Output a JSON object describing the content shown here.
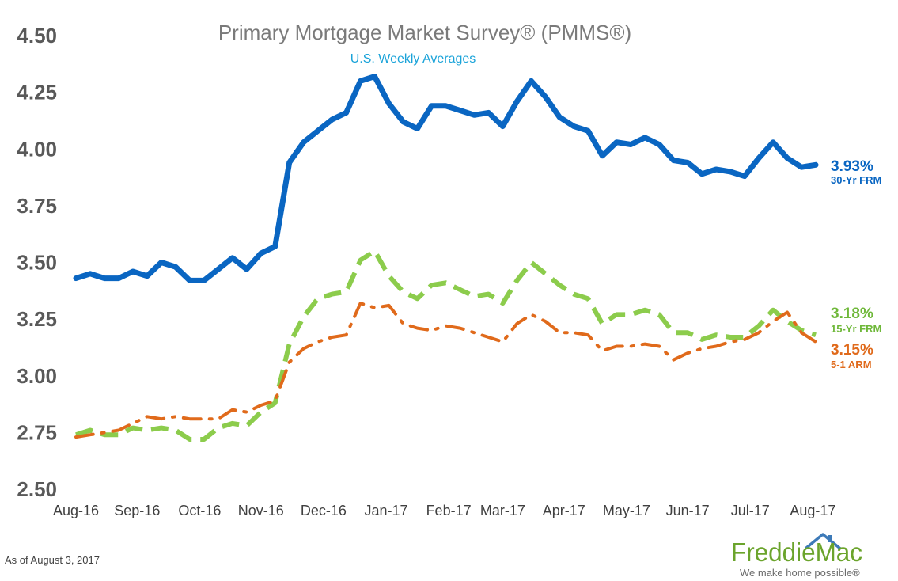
{
  "chart_data": {
    "type": "line",
    "title": "Primary Mortgage Market Survey® (PMMS®)",
    "subtitle": "U.S. Weekly Averages",
    "ylim": [
      2.5,
      4.5
    ],
    "yticks": [
      "4.50",
      "4.25",
      "4.00",
      "3.75",
      "3.50",
      "3.25",
      "3.00",
      "2.75",
      "2.50"
    ],
    "ytick_values": [
      4.5,
      4.25,
      4.0,
      3.75,
      3.5,
      3.25,
      3.0,
      2.75,
      2.5
    ],
    "grid": false,
    "x_weeks": [
      "2016-08-04",
      "2016-08-11",
      "2016-08-18",
      "2016-08-25",
      "2016-09-01",
      "2016-09-08",
      "2016-09-15",
      "2016-09-22",
      "2016-09-29",
      "2016-10-06",
      "2016-10-13",
      "2016-10-20",
      "2016-10-27",
      "2016-11-03",
      "2016-11-10",
      "2016-11-17",
      "2016-11-23",
      "2016-12-01",
      "2016-12-08",
      "2016-12-15",
      "2016-12-22",
      "2016-12-29",
      "2017-01-05",
      "2017-01-12",
      "2017-01-19",
      "2017-01-26",
      "2017-02-02",
      "2017-02-09",
      "2017-02-16",
      "2017-02-23",
      "2017-03-02",
      "2017-03-09",
      "2017-03-16",
      "2017-03-23",
      "2017-03-30",
      "2017-04-06",
      "2017-04-13",
      "2017-04-20",
      "2017-04-27",
      "2017-05-04",
      "2017-05-11",
      "2017-05-18",
      "2017-05-25",
      "2017-06-01",
      "2017-06-08",
      "2017-06-15",
      "2017-06-22",
      "2017-06-29",
      "2017-07-06",
      "2017-07-13",
      "2017-07-20",
      "2017-07-27",
      "2017-08-03"
    ],
    "x_labels": [
      {
        "label": "Aug-16",
        "week": 0
      },
      {
        "label": "Sep-16",
        "week": 4.3
      },
      {
        "label": "Oct-16",
        "week": 8.7
      },
      {
        "label": "Nov-16",
        "week": 13
      },
      {
        "label": "Dec-16",
        "week": 17.4
      },
      {
        "label": "Jan-17",
        "week": 21.8
      },
      {
        "label": "Feb-17",
        "week": 26.2
      },
      {
        "label": "Mar-17",
        "week": 30
      },
      {
        "label": "Apr-17",
        "week": 34.3
      },
      {
        "label": "May-17",
        "week": 38.7
      },
      {
        "label": "Jun-17",
        "week": 43
      },
      {
        "label": "Jul-17",
        "week": 47.4
      },
      {
        "label": "Aug-17",
        "week": 51.8
      }
    ],
    "series": [
      {
        "name": "30-Yr FRM",
        "color": "#0a66c2",
        "style": "solid",
        "end_value": "3.93%",
        "values": [
          3.43,
          3.45,
          3.43,
          3.43,
          3.46,
          3.44,
          3.5,
          3.48,
          3.42,
          3.42,
          3.47,
          3.52,
          3.47,
          3.54,
          3.57,
          3.94,
          4.03,
          4.08,
          4.13,
          4.16,
          4.3,
          4.32,
          4.2,
          4.12,
          4.09,
          4.19,
          4.19,
          4.17,
          4.15,
          4.16,
          4.1,
          4.21,
          4.3,
          4.23,
          4.14,
          4.1,
          4.08,
          3.97,
          4.03,
          4.02,
          4.05,
          4.02,
          3.95,
          3.94,
          3.89,
          3.91,
          3.9,
          3.88,
          3.96,
          4.03,
          3.96,
          3.92,
          3.93
        ]
      },
      {
        "name": "15-Yr FRM",
        "color": "#8ccc4c",
        "style": "dashed",
        "end_value": "3.18%",
        "values": [
          2.74,
          2.76,
          2.74,
          2.74,
          2.77,
          2.76,
          2.77,
          2.76,
          2.72,
          2.72,
          2.77,
          2.79,
          2.78,
          2.84,
          2.88,
          3.14,
          3.26,
          3.34,
          3.36,
          3.37,
          3.51,
          3.55,
          3.44,
          3.37,
          3.34,
          3.4,
          3.41,
          3.38,
          3.35,
          3.36,
          3.32,
          3.42,
          3.5,
          3.45,
          3.4,
          3.36,
          3.34,
          3.23,
          3.27,
          3.27,
          3.29,
          3.27,
          3.19,
          3.19,
          3.16,
          3.18,
          3.17,
          3.17,
          3.22,
          3.29,
          3.24,
          3.2,
          3.18
        ]
      },
      {
        "name": "5-1 ARM",
        "color": "#e06a1b",
        "style": "dashdot",
        "end_value": "3.15%",
        "values": [
          2.73,
          2.74,
          2.75,
          2.76,
          2.79,
          2.82,
          2.81,
          2.82,
          2.81,
          2.81,
          2.81,
          2.85,
          2.84,
          2.87,
          2.89,
          3.06,
          3.12,
          3.15,
          3.17,
          3.18,
          3.32,
          3.3,
          3.31,
          3.23,
          3.21,
          3.2,
          3.22,
          3.21,
          3.19,
          3.17,
          3.15,
          3.23,
          3.27,
          3.24,
          3.19,
          3.19,
          3.18,
          3.11,
          3.13,
          3.13,
          3.14,
          3.13,
          3.07,
          3.1,
          3.12,
          3.13,
          3.15,
          3.16,
          3.19,
          3.24,
          3.28,
          3.19,
          3.15
        ]
      }
    ]
  },
  "footer": {
    "as_of": "As of August 3, 2017",
    "logo_text": "FreddieMac",
    "tagline": "We make home possible®"
  }
}
